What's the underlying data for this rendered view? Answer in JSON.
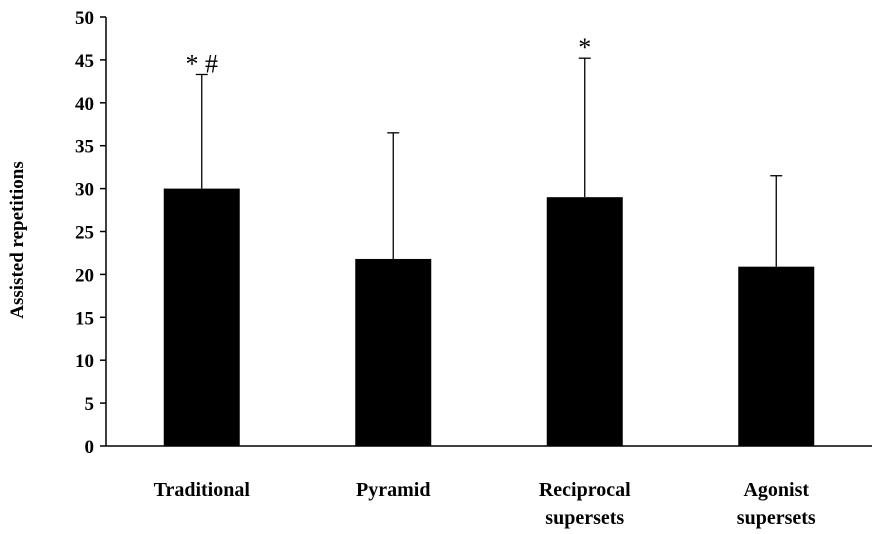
{
  "chart_data": {
    "type": "bar",
    "title": "",
    "xlabel": "",
    "ylabel": "Assisted repetitions",
    "ylim": [
      0,
      50
    ],
    "yticks": [
      0,
      5,
      10,
      15,
      20,
      25,
      30,
      35,
      40,
      45,
      50
    ],
    "grid": false,
    "categories": [
      [
        "Traditional"
      ],
      [
        "Pyramid"
      ],
      [
        "Reciprocal",
        "supersets"
      ],
      [
        "Agonist",
        "supersets"
      ]
    ],
    "values": [
      30,
      21.8,
      29,
      20.9
    ],
    "error_upper": [
      13.3,
      14.7,
      16.2,
      10.6
    ],
    "annotations": [
      "* #",
      "",
      "*",
      ""
    ],
    "colors": {
      "bar": "#000000",
      "axis": "#000000",
      "error_bar": "#000000"
    }
  }
}
